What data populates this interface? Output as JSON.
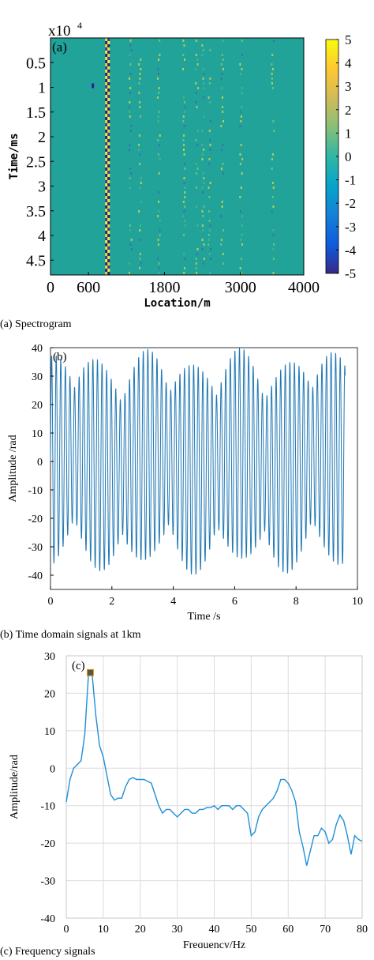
{
  "captions": {
    "a": "(a) Spectrogram",
    "b": "(b) Time domain signals at 1km",
    "c": "(c) Frequency signals"
  },
  "chart_data": [
    {
      "type": "heatmap",
      "panel_label": "(a)",
      "title": "",
      "xlabel": "Location/m",
      "ylabel": "Time/ms",
      "y_exponent_label": "x10",
      "y_exponent_power": "4",
      "x_ticks": [
        "0",
        "600",
        "1800",
        "3000",
        "4000"
      ],
      "x_tick_values": [
        0,
        600,
        1800,
        3000,
        4000
      ],
      "y_ticks": [
        "0.5",
        "1",
        "1.5",
        "2",
        "2.5",
        "3",
        "3.5",
        "4",
        "4.5"
      ],
      "y_tick_values": [
        0.5,
        1,
        1.5,
        2,
        2.5,
        3,
        3.5,
        4,
        4.5
      ],
      "xlim": [
        0,
        4000
      ],
      "ylim": [
        0,
        4.8
      ],
      "colorbar": {
        "ticks": [
          "5",
          "4",
          "3",
          "2",
          "1",
          "0",
          "-1",
          "-2",
          "-3",
          "-4",
          "-5"
        ],
        "range": [
          -5,
          5
        ]
      },
      "background_value": 0,
      "strong_stripe_location": 900,
      "weak_stripe_locations": [
        1250,
        1400,
        1700,
        2100,
        2300,
        2400,
        2500,
        2700,
        3000,
        3500
      ]
    },
    {
      "type": "line",
      "panel_label": "(b)",
      "title": "",
      "xlabel": "Time /s",
      "ylabel": "Amplitude /rad",
      "x_ticks": [
        "0",
        "2",
        "4",
        "6",
        "8",
        "10"
      ],
      "x_tick_values": [
        0,
        2,
        4,
        6,
        8,
        10
      ],
      "y_ticks": [
        "40",
        "30",
        "20",
        "10",
        "0",
        "-10",
        "-20",
        "-30",
        "-40"
      ],
      "y_tick_values": [
        40,
        30,
        20,
        10,
        0,
        -10,
        -20,
        -30,
        -40
      ],
      "xlim": [
        0,
        10
      ],
      "ylim": [
        -45,
        40
      ],
      "signal_duration": 9.6,
      "carrier_frequency_hz": 6.7,
      "peak_amplitude": 37,
      "beat_period_s": 1.55,
      "color": "#1f77b4"
    },
    {
      "type": "line",
      "panel_label": "(c)",
      "title": "",
      "xlabel": "Frequency/Hz",
      "ylabel": "Amplitude/rad",
      "x_ticks": [
        "0",
        "10",
        "20",
        "30",
        "40",
        "50",
        "60",
        "70",
        "80"
      ],
      "x_tick_values": [
        0,
        10,
        20,
        30,
        40,
        50,
        60,
        70,
        80
      ],
      "y_ticks": [
        "30",
        "20",
        "10",
        "0",
        "-10",
        "-20",
        "-30",
        "-40"
      ],
      "y_tick_values": [
        30,
        20,
        10,
        0,
        -10,
        -20,
        -30,
        -40
      ],
      "xlim": [
        0,
        80
      ],
      "ylim": [
        -40,
        30
      ],
      "grid": true,
      "color": "#1f8fd6",
      "marker": {
        "x": 6.5,
        "y": 25.5
      },
      "x": [
        0,
        1,
        2,
        3,
        4,
        5,
        6,
        7,
        8,
        9,
        10,
        11,
        12,
        13,
        14,
        15,
        16,
        17,
        18,
        19,
        20,
        21,
        22,
        23,
        24,
        25,
        26,
        27,
        28,
        29,
        30,
        31,
        32,
        33,
        34,
        35,
        36,
        37,
        38,
        39,
        40,
        41,
        42,
        43,
        44,
        45,
        46,
        47,
        48,
        49,
        50,
        51,
        52,
        53,
        54,
        55,
        56,
        57,
        58,
        59,
        60,
        61,
        62,
        63,
        64,
        65,
        66,
        67,
        68,
        69,
        70,
        71,
        72,
        73,
        74,
        75,
        76,
        77,
        78,
        79,
        80
      ],
      "y": [
        -9,
        -3,
        0,
        1,
        2,
        9,
        25,
        25,
        14,
        6,
        3,
        -2,
        -7,
        -8.5,
        -8,
        -8,
        -5,
        -3,
        -2.5,
        -3,
        -3,
        -3,
        -3.5,
        -4,
        -7,
        -10,
        -12,
        -11,
        -11,
        -12,
        -13,
        -12,
        -11,
        -11,
        -12,
        -12,
        -11,
        -11,
        -10.5,
        -10.5,
        -10,
        -11,
        -10,
        -10,
        -10,
        -11,
        -10,
        -10,
        -11,
        -12,
        -18,
        -17,
        -13,
        -11,
        -10,
        -9,
        -8,
        -6,
        -3,
        -3,
        -4,
        -6,
        -9,
        -17,
        -21,
        -26,
        -22,
        -18,
        -18,
        -16,
        -17,
        -20,
        -19,
        -15,
        -12.5,
        -14,
        -18,
        -23,
        -18,
        -19,
        -19.5
      ]
    }
  ]
}
